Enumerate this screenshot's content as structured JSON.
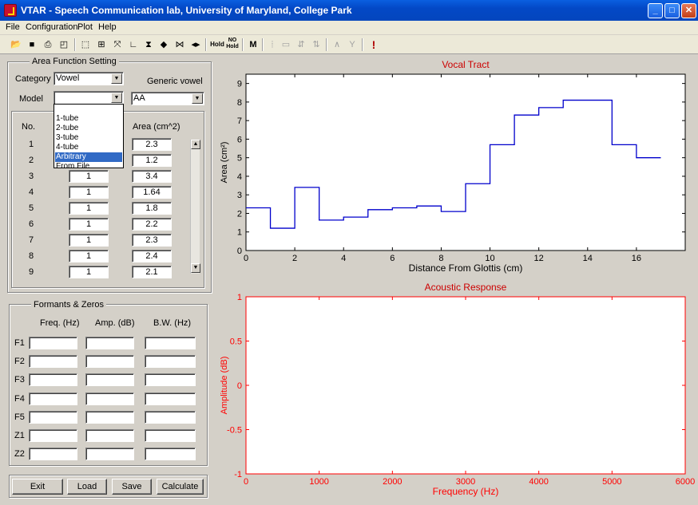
{
  "window": {
    "title": "VTAR  - Speech Communication lab, University of Maryland, College Park"
  },
  "menu": [
    "File",
    "Configuration",
    "Plot",
    "Help"
  ],
  "toolbar": {
    "icons": [
      "open-icon",
      "save-icon",
      "print-icon",
      "print-preview-icon",
      "select-region-icon",
      "zoom-fit-icon",
      "expand-icon",
      "axis-icon",
      "collapse-vertical-icon",
      "expand-vertical-icon",
      "collapse-horizontal-icon",
      "expand-horizontal-icon",
      "hold-icon",
      "no-hold-icon",
      "mouse-icon",
      "grid-icon",
      "tube-icon",
      "add-tube-icon",
      "remove-tube-icon",
      "formant-icon",
      "zero-icon",
      "alert-icon"
    ],
    "hold_label": "Hold",
    "nohold_label": "NO Hold"
  },
  "area_function": {
    "title": "Area Function Setting",
    "category_label": "Category",
    "category_value": "Vowel",
    "generic_vowel_label": "Generic vowel",
    "generic_vowel_value": "AA",
    "model_label": "Model",
    "model_value": "",
    "model_options": [
      "1-tube",
      "2-tube",
      "3-tube",
      "4-tube",
      "Arbitrary",
      "From File"
    ],
    "model_selected": "Arbitrary",
    "col_no": "No.",
    "col_area": "Area (cm^2)",
    "rows": [
      {
        "no": "1",
        "length": "",
        "area": "2.3"
      },
      {
        "no": "2",
        "length": "",
        "area": "1.2"
      },
      {
        "no": "3",
        "length": "1",
        "area": "3.4"
      },
      {
        "no": "4",
        "length": "1",
        "area": "1.64"
      },
      {
        "no": "5",
        "length": "1",
        "area": "1.8"
      },
      {
        "no": "6",
        "length": "1",
        "area": "2.2"
      },
      {
        "no": "7",
        "length": "1",
        "area": "2.3"
      },
      {
        "no": "8",
        "length": "1",
        "area": "2.4"
      },
      {
        "no": "9",
        "length": "1",
        "area": "2.1"
      }
    ]
  },
  "formants": {
    "title": "Formants & Zeros",
    "col_freq": "Freq. (Hz)",
    "col_amp": "Amp. (dB)",
    "col_bw": "B.W. (Hz)",
    "rows": [
      "F1",
      "F2",
      "F3",
      "F4",
      "F5",
      "Z1",
      "Z2"
    ]
  },
  "buttons": {
    "exit": "Exit",
    "load": "Load",
    "save": "Save",
    "calculate": "Calculate"
  },
  "colors": {
    "tract_line": "#0000cc",
    "axis": "#000000",
    "acoustic": "#ff0000",
    "title_red": "#cc0000"
  },
  "chart_data": [
    {
      "type": "line",
      "title": "Vocal Tract",
      "xlabel": "Distance From Glottis (cm)",
      "ylabel": "Area (cm²)",
      "xlim": [
        0,
        18
      ],
      "ylim": [
        0,
        9.5
      ],
      "xticks": [
        0,
        2,
        4,
        6,
        8,
        10,
        12,
        14,
        16
      ],
      "yticks": [
        0,
        1,
        2,
        3,
        4,
        5,
        6,
        7,
        8,
        9
      ],
      "step": true,
      "x": [
        0,
        1,
        2,
        3,
        4,
        5,
        6,
        7,
        8,
        9,
        10,
        11,
        12,
        13,
        14,
        15,
        16,
        17
      ],
      "y": [
        2.3,
        1.2,
        3.4,
        1.64,
        1.8,
        2.2,
        2.3,
        2.4,
        2.1,
        3.6,
        5.7,
        7.3,
        7.7,
        8.1,
        8.1,
        5.7,
        5.0,
        5.0
      ]
    },
    {
      "type": "line",
      "title": "Acoustic Response",
      "xlabel": "Frequency (Hz)",
      "ylabel": "Amplitude (dB)",
      "xlim": [
        0,
        6000
      ],
      "ylim": [
        -1,
        1
      ],
      "xticks": [
        0,
        1000,
        2000,
        3000,
        4000,
        5000,
        6000
      ],
      "yticks": [
        -1,
        -0.5,
        0,
        0.5,
        1
      ],
      "ytick_labels": [
        "-1",
        "-0.5",
        "0",
        "0.5",
        "1"
      ],
      "series": []
    }
  ]
}
